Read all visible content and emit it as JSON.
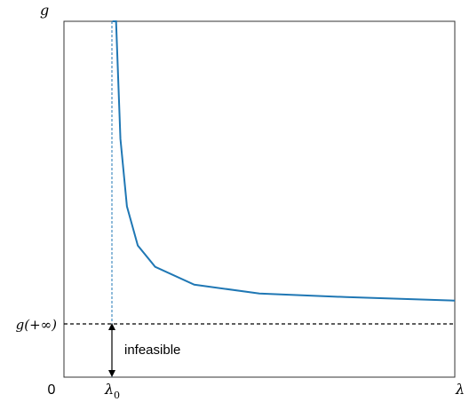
{
  "chart_data": {
    "type": "line",
    "title": "",
    "axes": {
      "y_label": "g",
      "x_label": "λ",
      "origin_label": "0"
    },
    "reference_lines": {
      "horizontal_asymptote_label": "g(+∞)",
      "vertical_asymptote_label": "λ",
      "vertical_asymptote_subscript": "0"
    },
    "annotations": {
      "infeasible_label": "infeasible"
    },
    "series": [
      {
        "values": [
          {
            "x": 1.12,
            "y": 1.65
          },
          {
            "x": 1.2,
            "y": 1.0
          },
          {
            "x": 1.3,
            "y": 0.67
          },
          {
            "x": 1.45,
            "y": 0.48
          },
          {
            "x": 1.7,
            "y": 0.37
          },
          {
            "x": 2.1,
            "y": 0.31
          },
          {
            "x": 3.0,
            "y": 0.26
          },
          {
            "x": 4.5,
            "y": 0.235
          },
          {
            "x": 6.5,
            "y": 0.225
          },
          {
            "x": 9.0,
            "y": 0.215
          }
        ]
      }
    ],
    "x_range": [
      0,
      9
    ],
    "y_range": [
      0,
      1
    ],
    "curve_color": "#1f77b4",
    "grid": false
  }
}
